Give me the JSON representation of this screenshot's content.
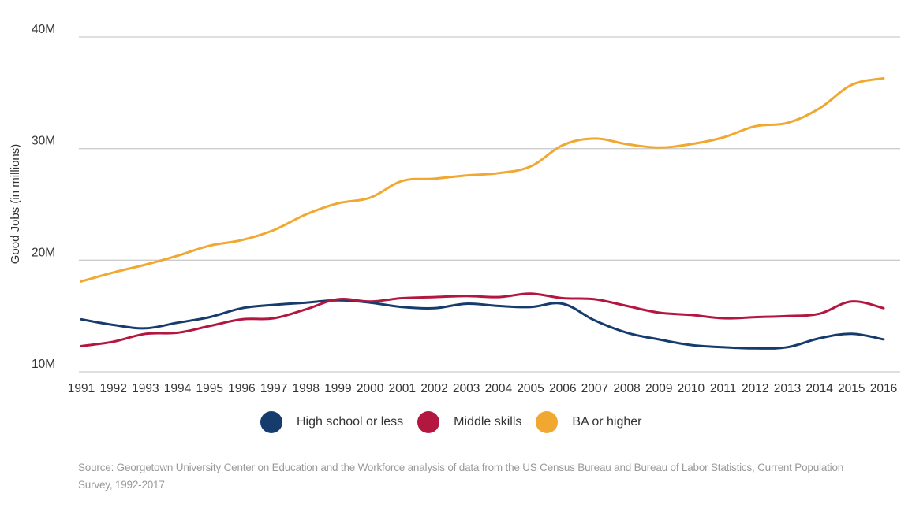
{
  "chart_data": {
    "type": "line",
    "title": "",
    "xlabel": "",
    "ylabel": "Good Jobs (in millions)",
    "ylim": [
      10,
      40
    ],
    "yticks": [
      10,
      20,
      30,
      40
    ],
    "ytick_labels": [
      "10M",
      "20M",
      "30M",
      "40M"
    ],
    "grid": true,
    "legend_position": "bottom",
    "x": [
      1991,
      1992,
      1993,
      1994,
      1995,
      1996,
      1997,
      1998,
      1999,
      2000,
      2001,
      2002,
      2003,
      2004,
      2005,
      2006,
      2007,
      2008,
      2009,
      2010,
      2011,
      2012,
      2013,
      2014,
      2015,
      2016
    ],
    "xtick_labels": [
      "1991",
      "1992",
      "1993",
      "1994",
      "1995",
      "1996",
      "1997",
      "1998",
      "1999",
      "2000",
      "2001",
      "2002",
      "2003",
      "2004",
      "2005",
      "2006",
      "2007",
      "2008",
      "2009",
      "2010",
      "2011",
      "2012",
      "2013",
      "2014",
      "2015",
      "2016"
    ],
    "series": [
      {
        "name": "High school or less",
        "color": "#163c6e",
        "values": [
          14.7,
          14.2,
          13.9,
          14.4,
          14.9,
          15.7,
          16.0,
          16.2,
          16.4,
          16.2,
          15.8,
          15.7,
          16.1,
          15.9,
          15.8,
          16.1,
          14.6,
          13.5,
          12.9,
          12.4,
          12.2,
          12.1,
          12.2,
          13.0,
          13.4,
          12.9
        ]
      },
      {
        "name": "Middle skills",
        "color": "#b3173f",
        "values": [
          12.3,
          12.7,
          13.4,
          13.5,
          14.1,
          14.7,
          14.8,
          15.6,
          16.5,
          16.3,
          16.6,
          16.7,
          16.8,
          16.7,
          17.0,
          16.6,
          16.5,
          15.9,
          15.3,
          15.1,
          14.8,
          14.9,
          15.0,
          15.2,
          16.3,
          15.7
        ]
      },
      {
        "name": "BA or higher",
        "color": "#f0a830",
        "values": [
          18.1,
          18.9,
          19.6,
          20.4,
          21.3,
          21.8,
          22.7,
          24.1,
          25.1,
          25.6,
          27.1,
          27.3,
          27.6,
          27.8,
          28.4,
          30.3,
          30.9,
          30.4,
          30.1,
          30.4,
          31.0,
          32.0,
          32.3,
          33.6,
          35.7,
          36.3
        ]
      }
    ]
  },
  "source_note": "Source: Georgetown University Center on Education and the Workforce analysis of data from the US Census Bureau and Bureau of Labor Statistics, Current Population Survey, 1992-2017."
}
